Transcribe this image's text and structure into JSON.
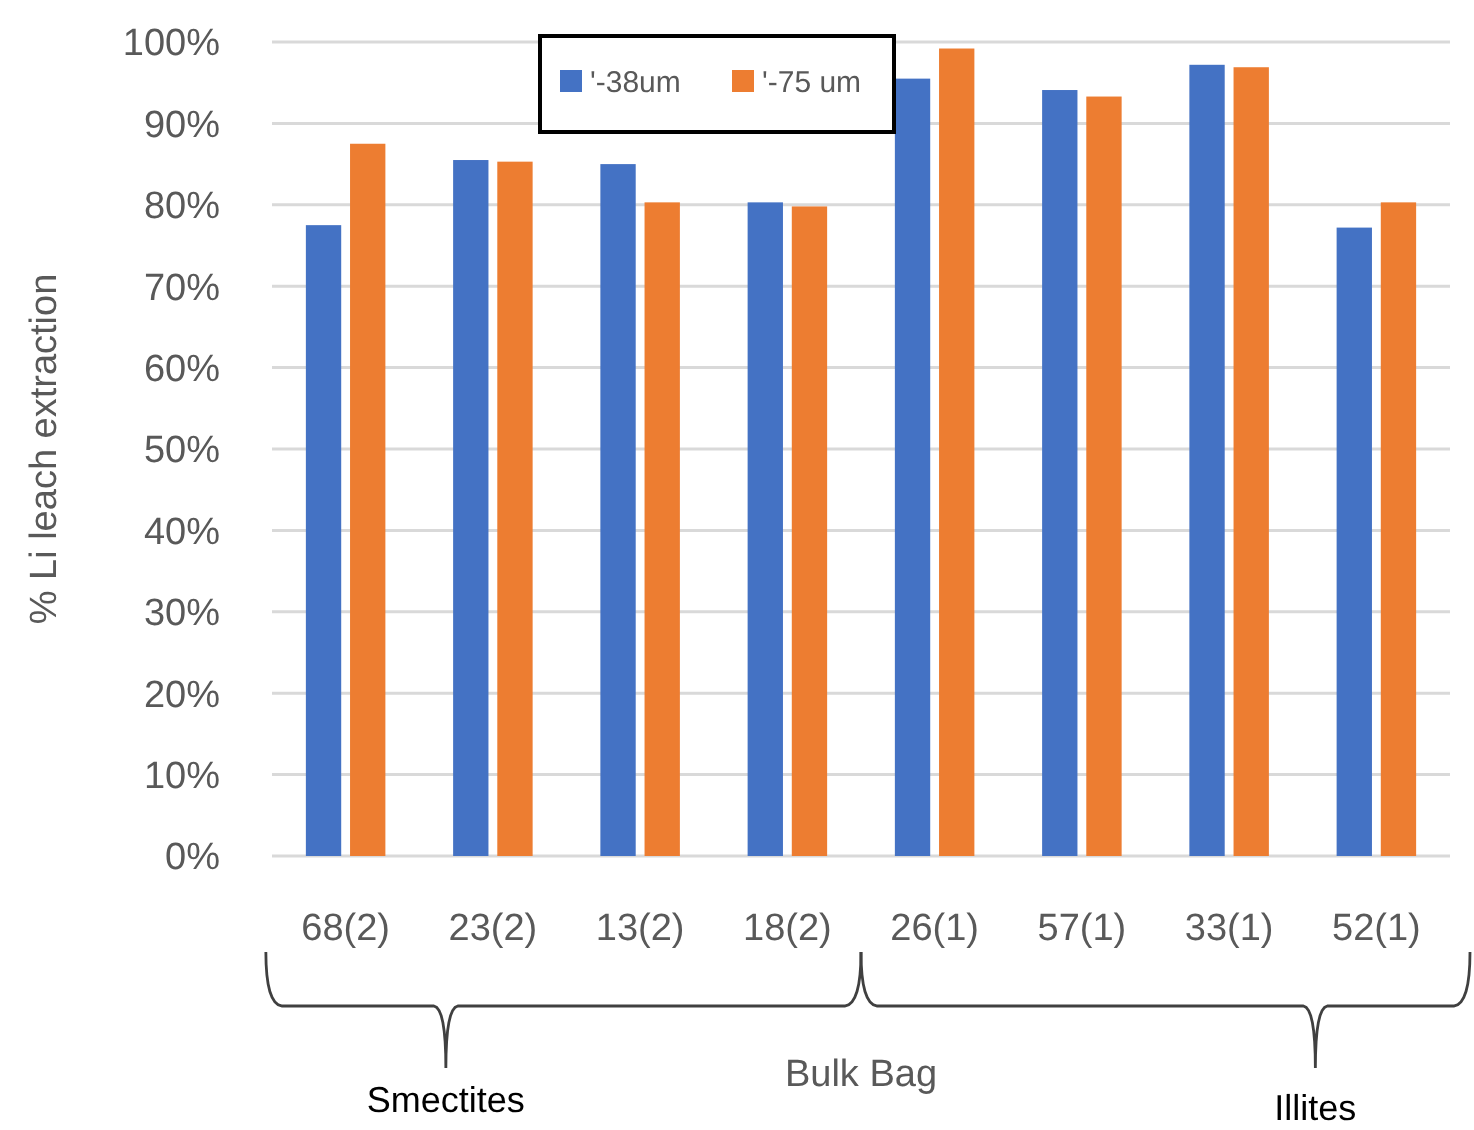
{
  "chart_data": {
    "type": "bar",
    "ylabel": "% Li leach extraction",
    "categories": [
      "68(2)",
      "23(2)",
      "13(2)",
      "18(2)",
      "26(1)",
      "57(1)",
      "33(1)",
      "52(1)"
    ],
    "series": [
      {
        "name": "'-38um",
        "color": "#4472c4",
        "values": [
          77.5,
          85.5,
          85,
          80.3,
          95.5,
          94.1,
          97.2,
          77.2
        ]
      },
      {
        "name": "'-75 um",
        "color": "#ed7d31",
        "values": [
          87.5,
          85.3,
          80.3,
          79.8,
          99.2,
          93.3,
          96.9,
          80.3
        ]
      }
    ],
    "ylim": [
      0,
      100
    ],
    "yticks": [
      {
        "value": 0,
        "label": "0%"
      },
      {
        "value": 10,
        "label": "10%"
      },
      {
        "value": 20,
        "label": "20%"
      },
      {
        "value": 30,
        "label": "30%"
      },
      {
        "value": 40,
        "label": "40%"
      },
      {
        "value": 50,
        "label": "50%"
      },
      {
        "value": 60,
        "label": "60%"
      },
      {
        "value": 70,
        "label": "70%"
      },
      {
        "value": 80,
        "label": "80%"
      },
      {
        "value": 90,
        "label": "90%"
      },
      {
        "value": 100,
        "label": "100%"
      }
    ],
    "grid": "y",
    "legend": "top",
    "annotations": [
      "Smectites",
      "Bulk Bag",
      "Illites"
    ]
  }
}
